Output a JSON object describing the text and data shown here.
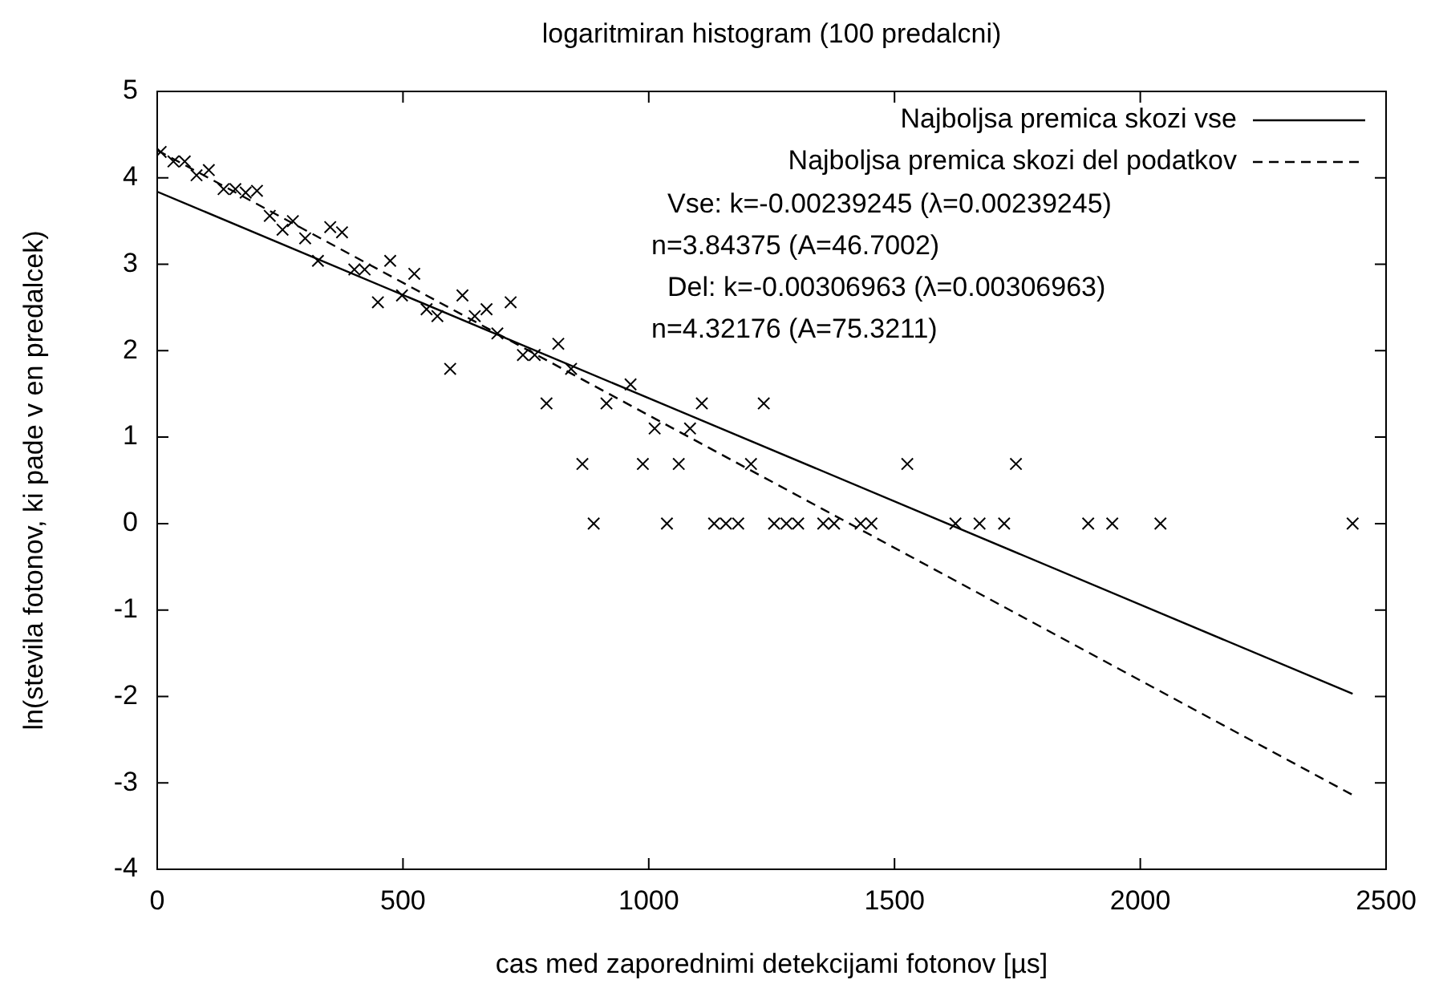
{
  "chart_data": {
    "type": "scatter",
    "title": "logaritmiran histogram (100 predalcni)",
    "xlabel": "cas med zaporednimi detekcijami fotonov [µs]",
    "ylabel": "ln(stevila fotonov, ki pade v en predalcek)",
    "xlim": [
      0,
      2500
    ],
    "xticks": [
      0,
      500,
      1000,
      1500,
      2000,
      2500
    ],
    "ylim": [
      -4,
      5
    ],
    "yticks": [
      -4,
      -3,
      -2,
      -1,
      0,
      1,
      2,
      3,
      4,
      5
    ],
    "grid": false,
    "legend": "top right",
    "annotations": [
      "Vse: k=-0.00239245 (λ=0.00239245)",
      "n=3.84375 (A=46.7002)",
      "Del: k=-0.00306963 (λ=0.00306963)",
      "n=4.32176 (A=75.3211)"
    ],
    "series": [
      {
        "color": "#000000",
        "marker": "cross",
        "x": [
          7,
          33,
          56,
          80,
          105,
          135,
          159,
          180,
          203,
          229,
          255,
          276,
          301,
          327,
          352,
          376,
          401,
          422,
          449,
          474,
          498,
          523,
          548,
          570,
          596,
          621,
          646,
          670,
          692,
          719,
          744,
          768,
          792,
          816,
          842,
          865,
          888,
          914,
          963,
          988,
          1012,
          1037,
          1061,
          1084,
          1108,
          1133,
          1157,
          1182,
          1208,
          1234,
          1255,
          1280,
          1304,
          1355,
          1377,
          1431,
          1453,
          1526,
          1624,
          1673,
          1723,
          1747,
          1894,
          1943,
          2041,
          2432
        ],
        "values": [
          4.3,
          4.19,
          4.19,
          4.03,
          4.09,
          3.87,
          3.87,
          3.83,
          3.85,
          3.56,
          3.4,
          3.5,
          3.3,
          3.04,
          3.43,
          3.37,
          2.94,
          2.94,
          2.56,
          3.04,
          2.64,
          2.89,
          2.48,
          2.4,
          1.79,
          2.64,
          2.4,
          2.48,
          2.2,
          2.56,
          1.95,
          1.95,
          1.39,
          2.08,
          1.79,
          0.69,
          0,
          1.39,
          1.61,
          0.69,
          1.1,
          0,
          0.69,
          1.1,
          1.39,
          0,
          0,
          0,
          0.69,
          1.39,
          0,
          0,
          0,
          0,
          0,
          0,
          0,
          0.69,
          0,
          0,
          0,
          0.69,
          0,
          0,
          0,
          0
        ]
      },
      {
        "type": "line",
        "name": "Najboljsa premica skozi vse",
        "color": "#000000",
        "line_style": "solid",
        "x": [
          0,
          2432
        ],
        "values": [
          3.84,
          -1.97
        ]
      },
      {
        "type": "line",
        "name": "Najboljsa premica skozi del podatkov",
        "color": "#000000",
        "line_style": "dashed",
        "x": [
          0,
          2432
        ],
        "values": [
          4.32,
          -3.14
        ]
      }
    ]
  }
}
